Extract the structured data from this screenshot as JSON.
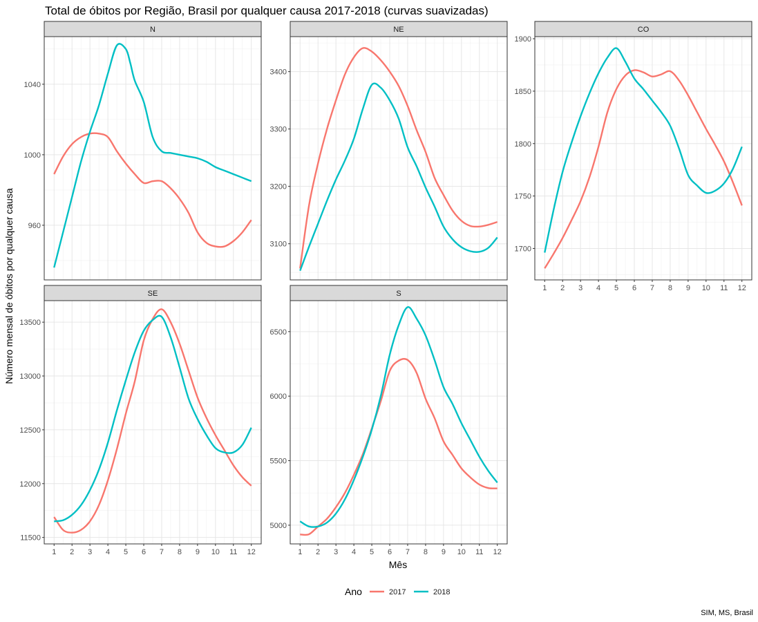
{
  "chart_data": {
    "type": "line",
    "title": "Total de óbitos por Região, Brasil por qualquer causa 2017-2018 (curvas suavizadas)",
    "xlabel": "Mês",
    "ylabel": "Número mensal de óbitos por qualquer causa",
    "caption": "SIM, MS, Brasil",
    "legend": {
      "title": "Ano",
      "position": "bottom",
      "entries": [
        {
          "name": "2017",
          "color": "#F8766D"
        },
        {
          "name": "2018",
          "color": "#00BFC4"
        }
      ]
    },
    "grid": true,
    "x_ticks": [
      1,
      2,
      3,
      4,
      5,
      6,
      7,
      8,
      9,
      10,
      11,
      12
    ],
    "facets": [
      {
        "strip": "N",
        "ylim": [
          929,
          1067
        ],
        "y_ticks": [
          960,
          1000,
          1040
        ],
        "series": [
          {
            "name": "2017",
            "x": [
              1,
              1.5,
              2,
              2.5,
              3,
              3.5,
              4,
              4.5,
              5,
              5.5,
              6,
              6.5,
              7,
              7.5,
              8,
              8.5,
              9,
              9.5,
              10,
              10.5,
              11,
              11.5,
              12
            ],
            "y": [
              989,
              999,
              1006,
              1010,
              1012,
              1012,
              1010,
              1002,
              995,
              989,
              984,
              985,
              985,
              981,
              975,
              967,
              956,
              950,
              948,
              948,
              951,
              956,
              963
            ]
          },
          {
            "name": "2018",
            "x": [
              1,
              1.5,
              2,
              2.5,
              3,
              3.5,
              4,
              4.5,
              5,
              5.25,
              5.5,
              6,
              6.5,
              7,
              7.5,
              8,
              8.5,
              9,
              9.5,
              10,
              10.5,
              11,
              11.5,
              12
            ],
            "y": [
              936,
              956,
              976,
              996,
              1013,
              1028,
              1046,
              1062,
              1060,
              1052,
              1042,
              1030,
              1010,
              1002,
              1001,
              1000,
              999,
              998,
              996,
              993,
              991,
              989,
              987,
              985
            ]
          }
        ]
      },
      {
        "strip": "NE",
        "ylim": [
          3037,
          3461
        ],
        "y_ticks": [
          3100,
          3200,
          3300,
          3400
        ],
        "series": [
          {
            "name": "2017",
            "x": [
              1,
              1.5,
              2,
              2.5,
              3,
              3.5,
              4,
              4.5,
              5,
              5.5,
              6,
              6.5,
              7,
              7.5,
              8,
              8.5,
              9,
              9.5,
              10,
              10.5,
              11,
              11.5,
              12
            ],
            "y": [
              3057,
              3167,
              3240,
              3300,
              3350,
              3395,
              3425,
              3441,
              3435,
              3420,
              3400,
              3375,
              3340,
              3298,
              3260,
              3215,
              3185,
              3158,
              3140,
              3131,
              3130,
              3133,
              3138
            ]
          },
          {
            "name": "2018",
            "x": [
              1,
              1.5,
              2,
              2.5,
              3,
              3.5,
              4,
              4.5,
              5,
              5.5,
              6,
              6.5,
              7,
              7.5,
              8,
              8.5,
              9,
              9.5,
              10,
              10.5,
              11,
              11.5,
              12
            ],
            "y": [
              3053,
              3095,
              3135,
              3175,
              3212,
              3245,
              3283,
              3335,
              3377,
              3372,
              3350,
              3318,
              3268,
              3235,
              3198,
              3165,
              3130,
              3108,
              3094,
              3087,
              3086,
              3093,
              3111
            ]
          }
        ]
      },
      {
        "strip": "CO",
        "ylim": [
          1670,
          1902
        ],
        "y_ticks": [
          1700,
          1750,
          1800,
          1850,
          1900
        ],
        "series": [
          {
            "name": "2017",
            "x": [
              1,
              1.5,
              2,
              2.5,
              3,
              3.5,
              4,
              4.5,
              5,
              5.5,
              6,
              6.5,
              7,
              7.5,
              8,
              8.5,
              9,
              9.5,
              10,
              10.5,
              11,
              11.5,
              12
            ],
            "y": [
              1681,
              1695,
              1710,
              1727,
              1745,
              1768,
              1797,
              1830,
              1852,
              1865,
              1870,
              1868,
              1864,
              1866,
              1869,
              1860,
              1846,
              1830,
              1814,
              1799,
              1783,
              1763,
              1741
            ]
          },
          {
            "name": "2018",
            "x": [
              1,
              1.5,
              2,
              2.5,
              3,
              3.5,
              4,
              4.5,
              5,
              5.5,
              6,
              6.5,
              7,
              7.5,
              8,
              8.5,
              9,
              9.5,
              10,
              10.5,
              11,
              11.5,
              12
            ],
            "y": [
              1696,
              1737,
              1773,
              1801,
              1826,
              1848,
              1867,
              1882,
              1891,
              1878,
              1862,
              1852,
              1841,
              1830,
              1817,
              1795,
              1770,
              1760,
              1753,
              1755,
              1762,
              1776,
              1797
            ]
          }
        ]
      },
      {
        "strip": "SE",
        "ylim": [
          11440,
          13700
        ],
        "y_ticks": [
          11500,
          12000,
          12500,
          13000,
          13500
        ],
        "series": [
          {
            "name": "2017",
            "x": [
              1,
              1.5,
              2,
              2.5,
              3,
              3.5,
              4,
              4.5,
              5,
              5.5,
              6,
              6.5,
              7,
              7.5,
              8,
              8.5,
              9,
              9.5,
              10,
              10.5,
              11,
              11.5,
              12
            ],
            "y": [
              11690,
              11570,
              11545,
              11570,
              11650,
              11800,
              12030,
              12320,
              12650,
              12950,
              13330,
              13530,
              13620,
              13500,
              13300,
              13050,
              12800,
              12610,
              12450,
              12310,
              12170,
              12060,
              11980
            ]
          },
          {
            "name": "2018",
            "x": [
              1,
              1.5,
              2,
              2.5,
              3,
              3.5,
              4,
              4.5,
              5,
              5.5,
              6,
              6.5,
              7,
              7.5,
              8,
              8.5,
              9,
              9.5,
              10,
              10.5,
              11,
              11.5,
              12
            ],
            "y": [
              11650,
              11660,
              11710,
              11800,
              11940,
              12130,
              12380,
              12680,
              12960,
              13220,
              13420,
              13520,
              13550,
              13360,
              13080,
              12790,
              12600,
              12450,
              12330,
              12290,
              12290,
              12360,
              12520
            ]
          }
        ]
      },
      {
        "strip": "S",
        "ylim": [
          4855,
          6740
        ],
        "y_ticks": [
          5000,
          5500,
          6000,
          6500
        ],
        "series": [
          {
            "name": "2017",
            "x": [
              1,
              1.5,
              2,
              2.5,
              3,
              3.5,
              4,
              4.5,
              5,
              5.5,
              6,
              6.5,
              7,
              7.5,
              8,
              8.5,
              9,
              9.5,
              10,
              10.5,
              11,
              11.5,
              12
            ],
            "y": [
              4928,
              4930,
              4990,
              5050,
              5140,
              5250,
              5390,
              5550,
              5750,
              5960,
              6195,
              6275,
              6280,
              6180,
              5980,
              5830,
              5650,
              5545,
              5440,
              5370,
              5315,
              5288,
              5285
            ]
          },
          {
            "name": "2018",
            "x": [
              1,
              1.5,
              2,
              2.5,
              3,
              3.5,
              4,
              4.5,
              5,
              5.5,
              6,
              6.5,
              7,
              7.5,
              8,
              8.5,
              9,
              9.5,
              10,
              10.5,
              11,
              11.5,
              12
            ],
            "y": [
              5030,
              4990,
              4990,
              5020,
              5090,
              5200,
              5350,
              5530,
              5740,
              6000,
              6320,
              6550,
              6690,
              6600,
              6470,
              6280,
              6070,
              5940,
              5790,
              5660,
              5530,
              5420,
              5330
            ]
          }
        ]
      }
    ]
  }
}
